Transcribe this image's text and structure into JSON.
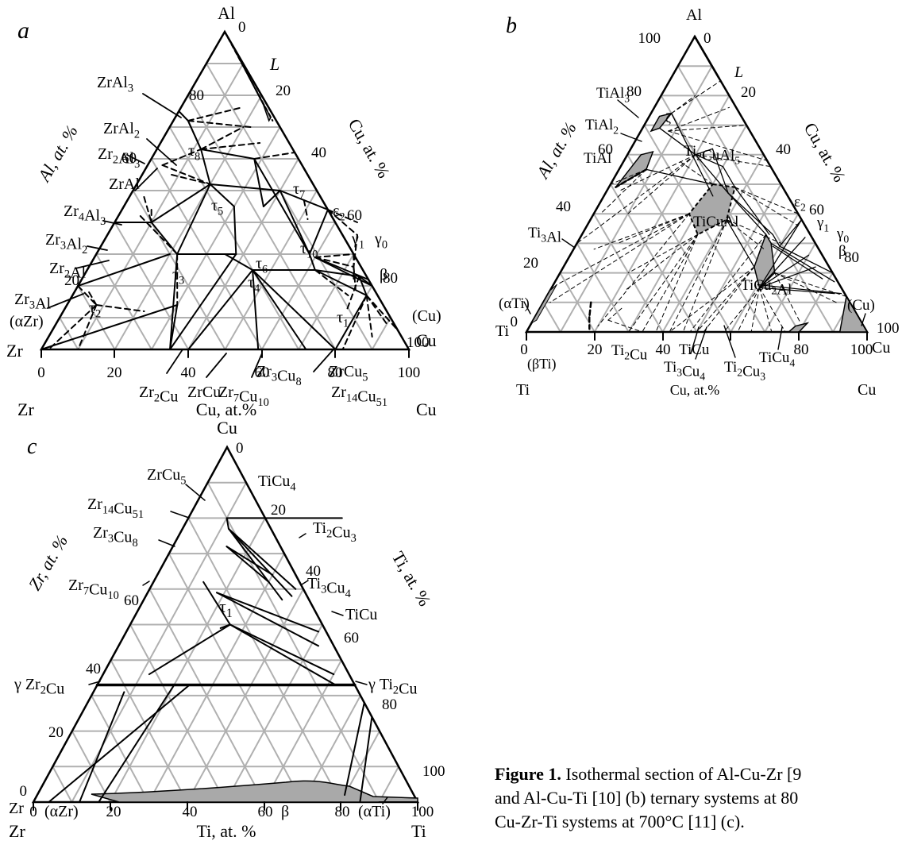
{
  "panels": [
    {
      "letter": "a",
      "apex_top": "Al",
      "corner_left": "Zr",
      "corner_right": "Cu",
      "bottom_axis_label": "Cu, at.%",
      "left_axis_label": "Al, at. %",
      "right_axis_label": "Cu, at. %",
      "bottom_ticks": [
        "0",
        "20",
        "40",
        "60",
        "80",
        "100"
      ],
      "left_ticks": [
        "20",
        "40",
        "60",
        "80"
      ],
      "right_ticks": [
        "0",
        "20",
        "40",
        "60",
        "80",
        "100"
      ],
      "phases": [
        "L",
        "ZrAl3",
        "ZrAl2",
        "Zr2Al3",
        "ZrAl",
        "Zr4Al3",
        "Zr3Al2",
        "Zr2Al",
        "Zr3Al",
        "(αZr)",
        "Zr2Cu",
        "ZrCu",
        "Zr7Cu10",
        "Zr3Cu8",
        "Zr14Cu51",
        "ZrCu5",
        "(Cu)",
        "β",
        "γ1",
        "γ0",
        "ε2",
        "τ1",
        "τ2",
        "τ3",
        "τ4",
        "τ5",
        "τ6",
        "τ7",
        "τ8",
        "τ10"
      ]
    },
    {
      "letter": "b",
      "apex_top": "Al",
      "corner_left": "Ti",
      "corner_right": "Cu",
      "bottom_axis_label": "Cu, at.%",
      "left_axis_label": "Al, at. %",
      "right_axis_label": "Cu, at. %",
      "bottom_ticks": [
        "0",
        "20",
        "40",
        "60",
        "80",
        "100"
      ],
      "left_ticks": [
        "0",
        "20",
        "40",
        "60",
        "80",
        "100"
      ],
      "right_ticks": [
        "0",
        "20",
        "40",
        "60",
        "80",
        "100"
      ],
      "phases": [
        "L",
        "TiAl3",
        "TiAl2",
        "TiAl",
        "Ti3Al",
        "(αTi)",
        "(βTi)",
        "Ti2CuAl5",
        "TiCuAl",
        "TiCu2Al",
        "Ti2Cu",
        "TiCu",
        "Ti3Cu4",
        "Ti2Cu3",
        "TiCu4",
        "(Cu)",
        "β",
        "γ1",
        "γ0",
        "ε2",
        "ζ"
      ]
    },
    {
      "letter": "c",
      "apex_top": "Cu",
      "corner_left": "Zr",
      "corner_right": "Ti",
      "bottom_axis_label": "Ti, at.  %",
      "left_axis_label": "Zr, at. %",
      "right_axis_label": "Ti, at. %",
      "bottom_ticks": [
        "0",
        "20",
        "40",
        "60",
        "80",
        "100"
      ],
      "left_ticks": [
        "0",
        "20",
        "40",
        "60"
      ],
      "right_ticks": [
        "0",
        "20",
        "40",
        "60",
        "80",
        "100"
      ],
      "phases": [
        "ZrCu5",
        "TiCu4",
        "Zr14Cu51",
        "Zr3Cu8",
        "Ti2Cu3",
        "Zr7Cu10",
        "Ti3Cu4",
        "TiCu",
        "τ1",
        "γ Zr2Cu",
        "γ Ti2Cu",
        "(αZr)",
        "β",
        "(αTi)"
      ]
    }
  ],
  "caption": {
    "bold": "Figure 1.",
    "line1": " Isothermal section of Al-Cu-Zr [9",
    "line2": "and Al-Cu-Ti [10] (b) ternary systems at 80",
    "line3": "Cu-Zr-Ti systems at 700°C [11] (c)."
  },
  "colors": {
    "line": "#000000",
    "grid": "#b0b0b0",
    "phase_fill": "#a9a9a9"
  }
}
